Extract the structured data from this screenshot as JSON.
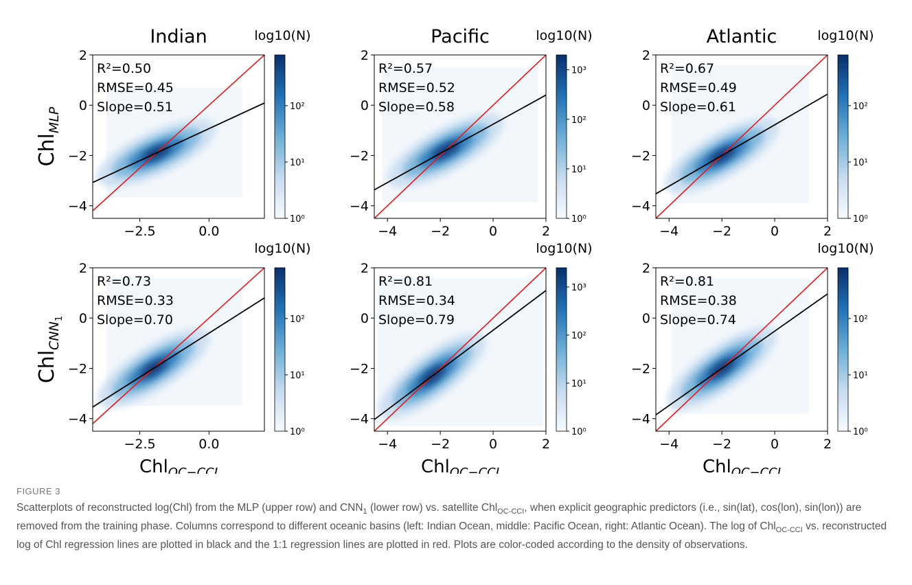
{
  "colors": {
    "one_to_one_line": "#e41a1c",
    "regression_line": "#000000",
    "colormap_low": "#f7fbff",
    "colormap_high": "#08306b"
  },
  "figure": {
    "row_labels": [
      {
        "base": "Chl",
        "sub": "MLP"
      },
      {
        "base": "Chl",
        "sub": "CNN",
        "subsub": "1"
      }
    ],
    "x_label": {
      "base": "Chl",
      "sub": "OC−CCI"
    },
    "colorbar_label": "log10(N)",
    "colorbar_scale": "log"
  },
  "chart_data": [
    {
      "type": "heatmap",
      "title": "Indian",
      "row": "MLP",
      "xlim": [
        -4.2,
        2.0
      ],
      "ylim": [
        -4.5,
        2.0
      ],
      "xticks": [
        "−2.5",
        "0.0"
      ],
      "xtick_values": [
        -2.5,
        0.0
      ],
      "yticks": [
        "−4",
        "−2",
        "0",
        "2"
      ],
      "ytick_values": [
        -4,
        -2,
        0,
        2
      ],
      "stats": [
        "R²=0.50",
        "RMSE=0.45",
        "Slope=0.51"
      ],
      "slope": 0.51,
      "pivot": [
        -1.9,
        -1.9
      ],
      "data_extent": {
        "x": [
          -3.7,
          1.2
        ],
        "y": [
          -3.65,
          0.7
        ]
      },
      "colorbar": {
        "max_exp": 2.9,
        "ticks": [
          "10⁰",
          "10¹",
          "10²"
        ],
        "tick_exps": [
          0,
          1,
          2
        ]
      }
    },
    {
      "type": "heatmap",
      "title": "Pacific",
      "row": "MLP",
      "xlim": [
        -4.5,
        2.0
      ],
      "ylim": [
        -4.5,
        2.0
      ],
      "xticks": [
        "−4",
        "−2",
        "0",
        "2"
      ],
      "xtick_values": [
        -4,
        -2,
        0,
        2
      ],
      "yticks": [
        "−4",
        "−2",
        "0",
        "2"
      ],
      "ytick_values": [
        -4,
        -2,
        0,
        2
      ],
      "stats": [
        "R²=0.57",
        "RMSE=0.52",
        "Slope=0.58"
      ],
      "slope": 0.58,
      "pivot": [
        -1.8,
        -1.8
      ],
      "data_extent": {
        "x": [
          -4.2,
          1.7
        ],
        "y": [
          -3.85,
          1.5
        ]
      },
      "colorbar": {
        "max_exp": 3.3,
        "ticks": [
          "10⁰",
          "10¹",
          "10²",
          "10³"
        ],
        "tick_exps": [
          0,
          1,
          2,
          3
        ]
      }
    },
    {
      "type": "heatmap",
      "title": "Atlantic",
      "row": "MLP",
      "xlim": [
        -4.5,
        2.0
      ],
      "ylim": [
        -4.5,
        2.0
      ],
      "xticks": [
        "−4",
        "−2",
        "0",
        "2"
      ],
      "xtick_values": [
        -4,
        -2,
        0,
        2
      ],
      "yticks": [
        "−4",
        "−2",
        "0",
        "2"
      ],
      "ytick_values": [
        -4,
        -2,
        0,
        2
      ],
      "stats": [
        "R²=0.67",
        "RMSE=0.49",
        "Slope=0.61"
      ],
      "slope": 0.61,
      "pivot": [
        -2.0,
        -2.0
      ],
      "data_extent": {
        "x": [
          -3.9,
          1.3
        ],
        "y": [
          -3.9,
          1.6
        ]
      },
      "colorbar": {
        "max_exp": 2.9,
        "ticks": [
          "10⁰",
          "10¹",
          "10²"
        ],
        "tick_exps": [
          0,
          1,
          2
        ]
      }
    },
    {
      "type": "heatmap",
      "title": "",
      "row": "CNN1",
      "xlim": [
        -4.2,
        2.0
      ],
      "ylim": [
        -4.5,
        2.0
      ],
      "xticks": [
        "−2.5",
        "0.0"
      ],
      "xtick_values": [
        -2.5,
        0.0
      ],
      "yticks": [
        "−4",
        "−2",
        "0",
        "2"
      ],
      "ytick_values": [
        -4,
        -2,
        0,
        2
      ],
      "stats": [
        "R²=0.73",
        "RMSE=0.33",
        "Slope=0.70"
      ],
      "slope": 0.7,
      "pivot": [
        -2.0,
        -2.0
      ],
      "data_extent": {
        "x": [
          -3.7,
          1.2
        ],
        "y": [
          -3.5,
          1.6
        ]
      },
      "colorbar": {
        "max_exp": 2.9,
        "ticks": [
          "10⁰",
          "10¹",
          "10²"
        ],
        "tick_exps": [
          0,
          1,
          2
        ]
      }
    },
    {
      "type": "heatmap",
      "title": "",
      "row": "CNN1",
      "xlim": [
        -4.5,
        2.0
      ],
      "ylim": [
        -4.5,
        2.0
      ],
      "xticks": [
        "−4",
        "−2",
        "0",
        "2"
      ],
      "xtick_values": [
        -4,
        -2,
        0,
        2
      ],
      "yticks": [
        "−4",
        "−2",
        "0",
        "2"
      ],
      "ytick_values": [
        -4,
        -2,
        0,
        2
      ],
      "stats": [
        "R²=0.81",
        "RMSE=0.34",
        "Slope=0.79"
      ],
      "slope": 0.79,
      "pivot": [
        -2.3,
        -2.3
      ],
      "data_extent": {
        "x": [
          -4.4,
          1.9
        ],
        "y": [
          -4.3,
          1.6
        ]
      },
      "colorbar": {
        "max_exp": 3.4,
        "ticks": [
          "10⁰",
          "10¹",
          "10²",
          "10³"
        ],
        "tick_exps": [
          0,
          1,
          2,
          3
        ]
      }
    },
    {
      "type": "heatmap",
      "title": "",
      "row": "CNN1",
      "xlim": [
        -4.5,
        2.0
      ],
      "ylim": [
        -4.5,
        2.0
      ],
      "xticks": [
        "−4",
        "−2",
        "0",
        "2"
      ],
      "xtick_values": [
        -4,
        -2,
        0,
        2
      ],
      "yticks": [
        "−4",
        "−2",
        "0",
        "2"
      ],
      "ytick_values": [
        -4,
        -2,
        0,
        2
      ],
      "stats": [
        "R²=0.81",
        "RMSE=0.38",
        "Slope=0.74"
      ],
      "slope": 0.74,
      "pivot": [
        -2.0,
        -2.0
      ],
      "data_extent": {
        "x": [
          -3.9,
          1.3
        ],
        "y": [
          -3.8,
          1.6
        ]
      },
      "colorbar": {
        "max_exp": 2.9,
        "ticks": [
          "10⁰",
          "10¹",
          "10²"
        ],
        "tick_exps": [
          0,
          1,
          2
        ]
      }
    }
  ],
  "caption": {
    "label": "FIGURE 3",
    "text": [
      {
        "t": "Scatterplots of reconstructed log(Chl) from the MLP (upper row) and CNN"
      },
      {
        "t": "1",
        "sub": true
      },
      {
        "t": " (lower row) vs. satellite Chl"
      },
      {
        "t": "OC-CCI",
        "sub": true
      },
      {
        "t": ", when explicit geographic predictors (i.e., sin(lat), cos(lon), sin(lon)) are removed from the training phase. Columns correspond to different oceanic basins (left: Indian Ocean, middle: Pacific Ocean, right: Atlantic Ocean). The log of Chl"
      },
      {
        "t": "OC-CCI",
        "sub": true
      },
      {
        "t": " vs. reconstructed log of Chl regression lines are plotted in black and the 1:1 regression lines are plotted in red. Plots are color-coded according to the density of observations."
      }
    ]
  }
}
